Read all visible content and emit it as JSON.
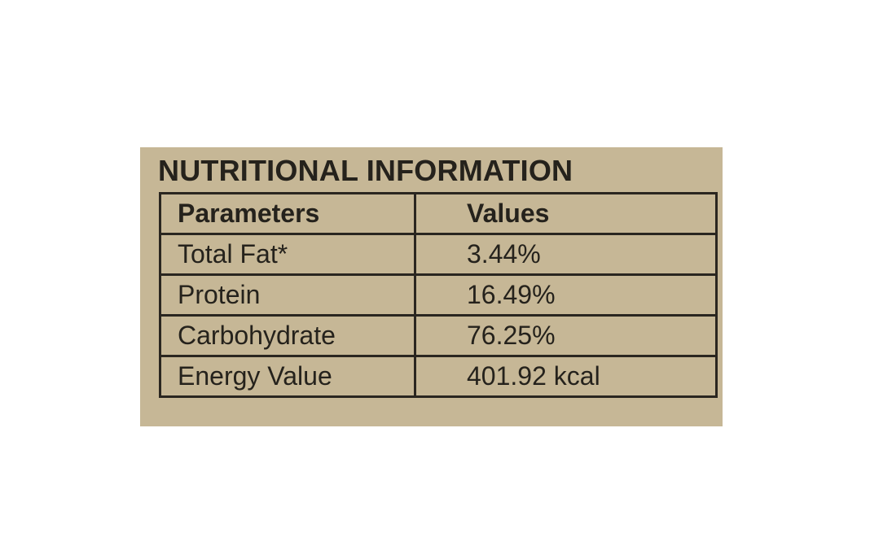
{
  "panel": {
    "title": "NUTRITIONAL INFORMATION",
    "background_color": "#c6b796",
    "text_color": "#25221c"
  },
  "table": {
    "headers": [
      "Parameters",
      "Values"
    ],
    "rows": [
      {
        "parameter": "Total Fat*",
        "value": "3.44%"
      },
      {
        "parameter": "Protein",
        "value": "16.49%"
      },
      {
        "parameter": "Carbohydrate",
        "value": "76.25%"
      },
      {
        "parameter": "Energy Value",
        "value": "401.92 kcal"
      }
    ]
  }
}
